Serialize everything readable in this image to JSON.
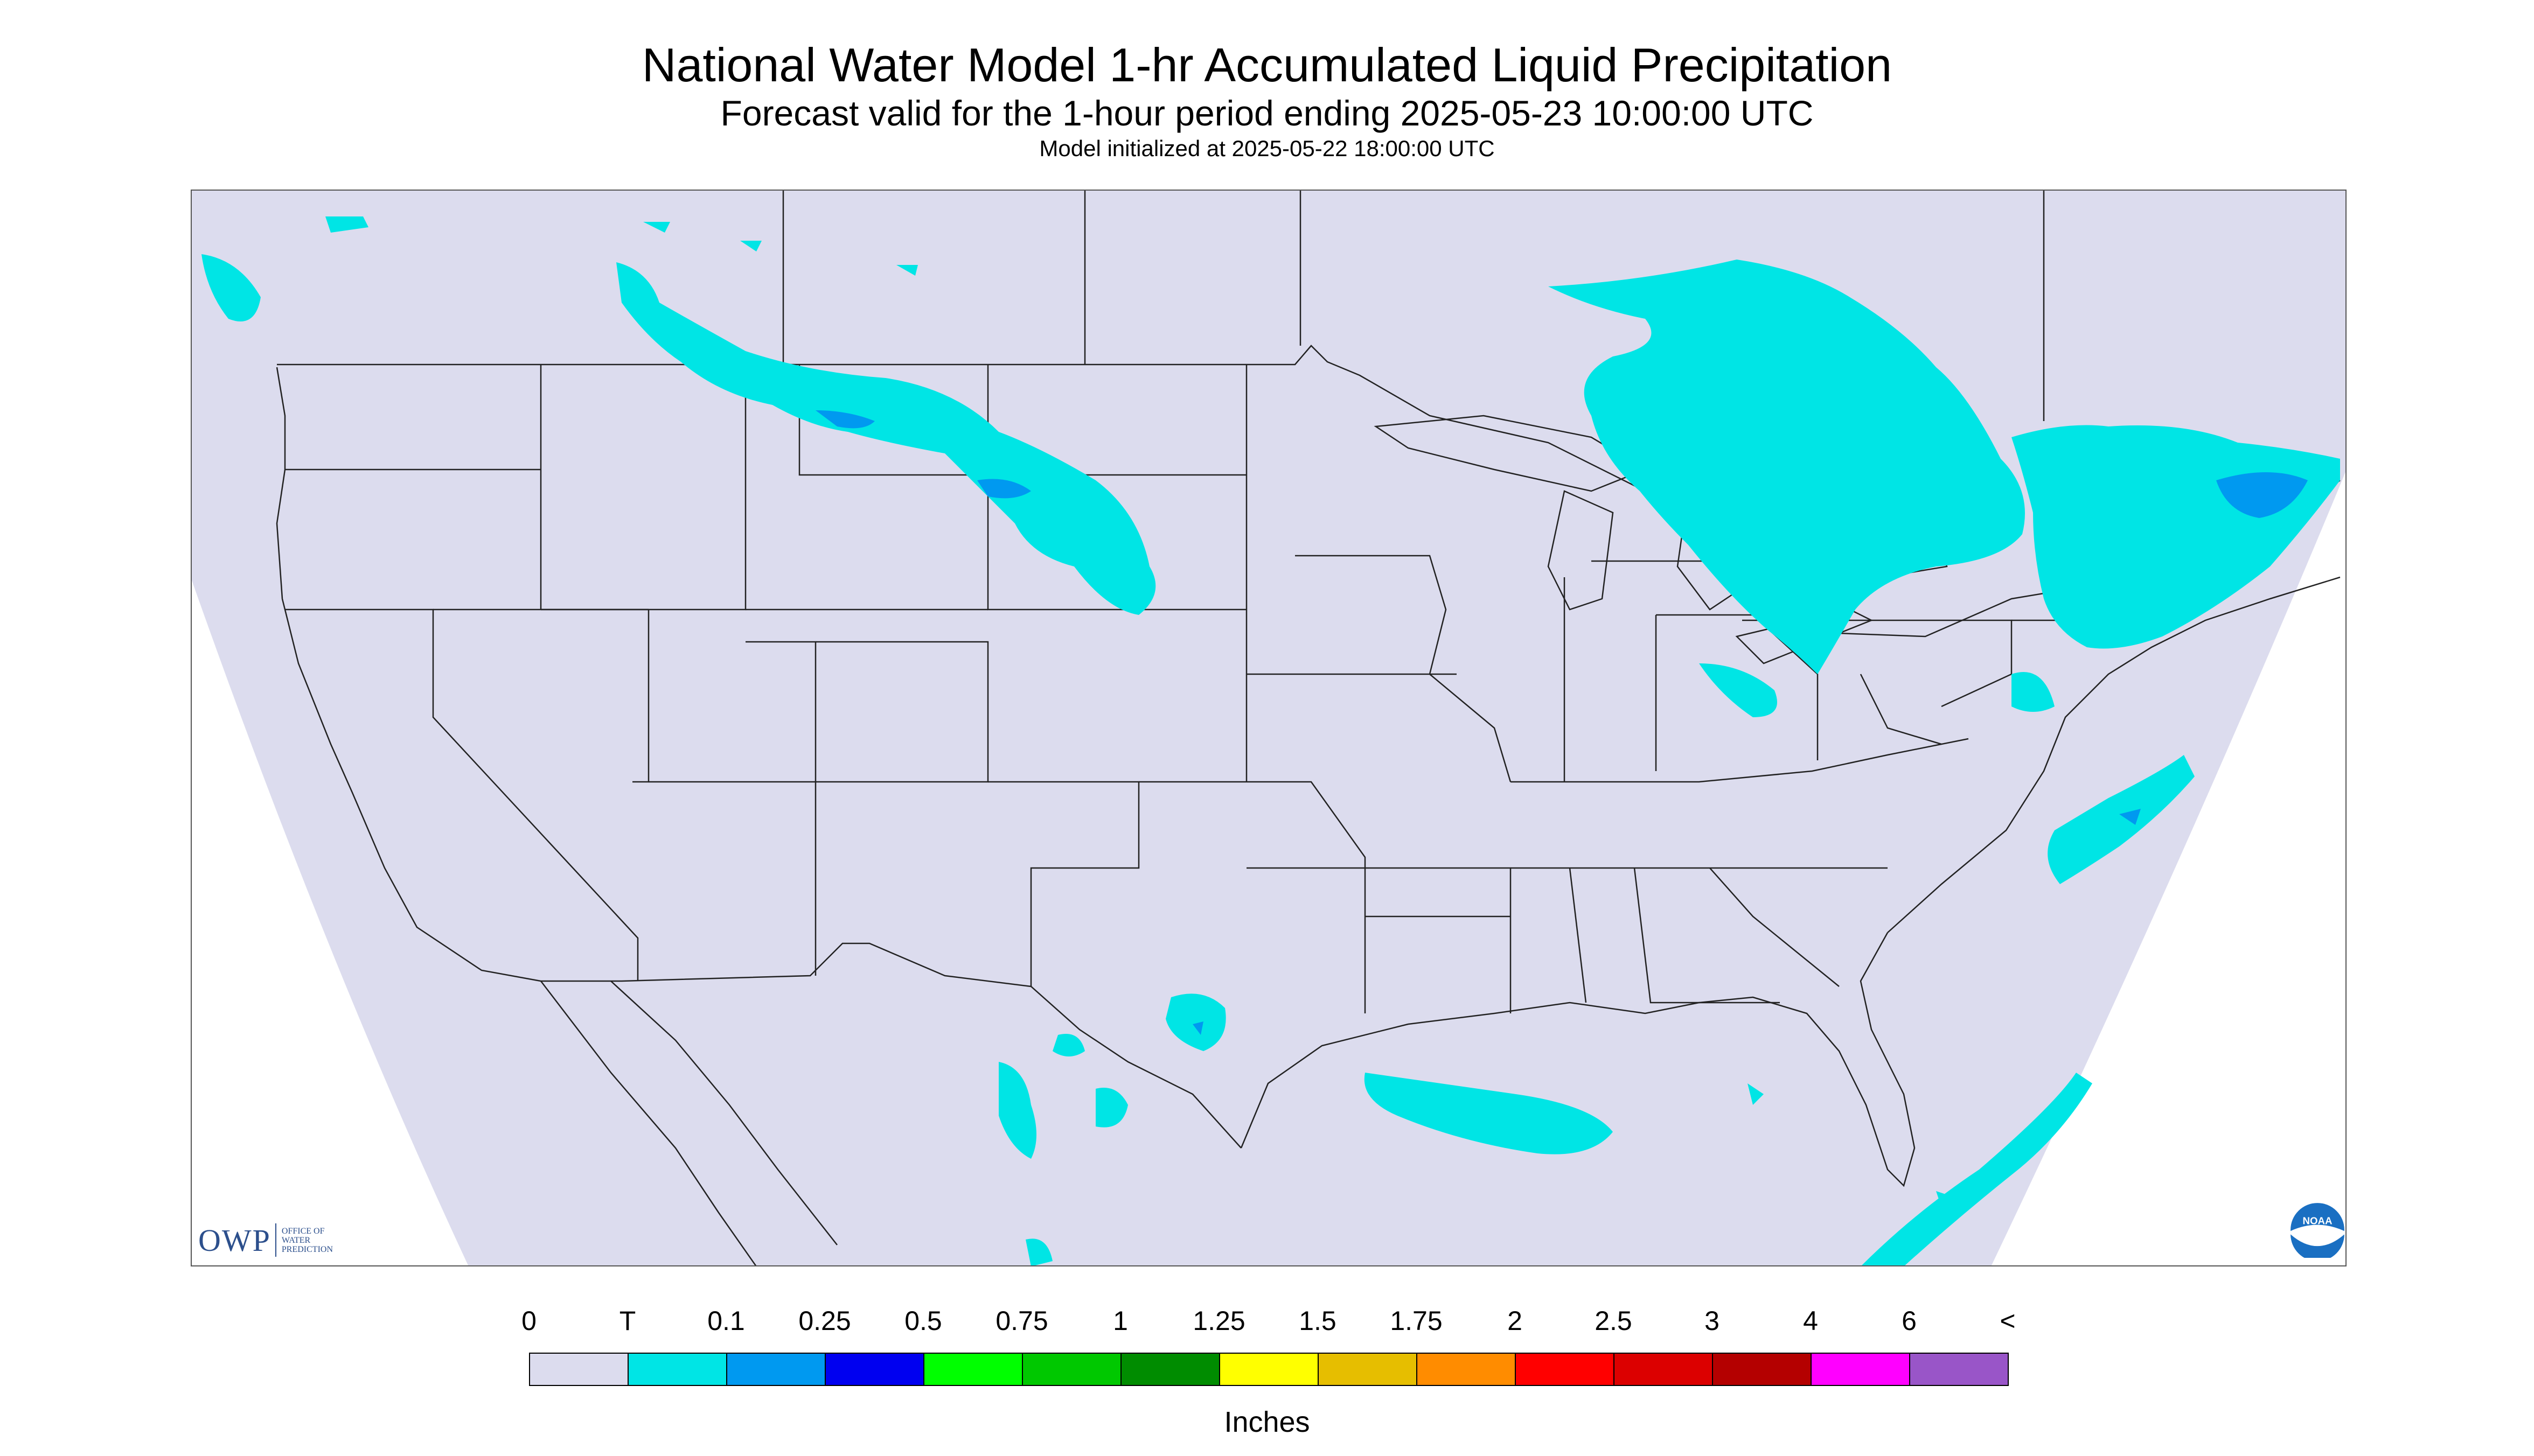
{
  "header": {
    "title": "National Water Model 1-hr Accumulated Liquid Precipitation",
    "subtitle": "Forecast valid for the 1-hour period ending 2025-05-23 10:00:00 UTC",
    "initialized": "Model initialized at 2025-05-22 18:00:00 UTC"
  },
  "logos": {
    "owp_abbrev": "OWP",
    "owp_line1": "OFFICE OF",
    "owp_line2": "WATER",
    "owp_line3": "PREDICTION",
    "noaa_text": "NOAA"
  },
  "legend": {
    "labels": [
      "0",
      "T",
      "0.1",
      "0.25",
      "0.5",
      "0.75",
      "1",
      "1.25",
      "1.5",
      "1.75",
      "2",
      "2.5",
      "3",
      "4",
      "6",
      "<"
    ],
    "colors": [
      "#dcdcee",
      "#00e5e5",
      "#0099f0",
      "#0000f0",
      "#00ff00",
      "#00c800",
      "#008c00",
      "#ffff00",
      "#e6be00",
      "#ff8c00",
      "#ff0000",
      "#dc0000",
      "#b40000",
      "#ff00ff",
      "#9955c8"
    ],
    "units": "Inches"
  },
  "map": {
    "background": "#dcdcee",
    "precip_light": "#00e5e5",
    "precip_moderate": "#0099f0"
  }
}
